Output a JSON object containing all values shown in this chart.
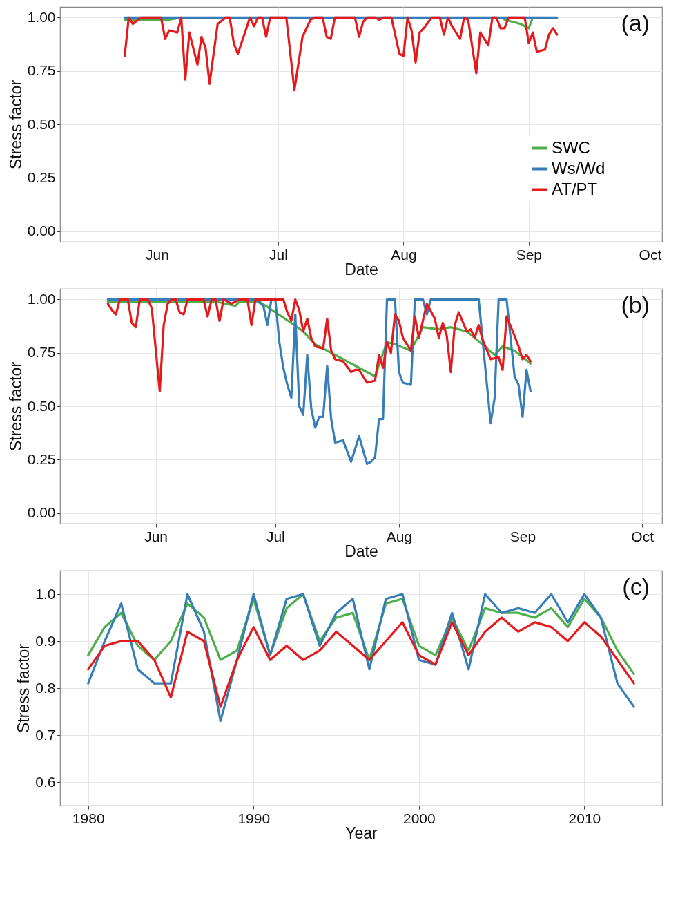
{
  "chart_data": [
    {
      "type": "line",
      "xlabel": "Date",
      "ylabel": "Stress factor",
      "annotations": [
        "(a)"
      ],
      "grid": true,
      "legend": "right",
      "xlim": [
        "--05-08",
        "--10-04"
      ],
      "xticks": [
        {
          "value": "--06-01",
          "label": "Jun"
        },
        {
          "value": "--07-01",
          "label": "Jul"
        },
        {
          "value": "--08-01",
          "label": "Aug"
        },
        {
          "value": "--09-01",
          "label": "Sep"
        },
        {
          "value": "--10-01",
          "label": "Oct"
        }
      ],
      "ylim": [
        -0.05,
        1.05
      ],
      "yticks": [
        {
          "value": 0,
          "label": "0.00"
        },
        0.25,
        {
          "value": 0.5,
          "label": "0.50"
        },
        0.75,
        {
          "value": 1,
          "label": "1.00"
        }
      ],
      "series": [
        {
          "name": "SWC",
          "color": "#4daf4a",
          "x": [
            "--05-24",
            "--06-04",
            "--06-07",
            "--08-22",
            "--08-26",
            "--08-30",
            "--09-01",
            "--09-02"
          ],
          "values": [
            0.99,
            0.99,
            1.0,
            null,
            0.99,
            0.97,
            0.95,
            1.0
          ]
        },
        {
          "name": "Ws/Wd",
          "color": "#377eb8",
          "x": [
            "--05-24",
            "--09-08"
          ],
          "values": [
            1.0,
            1.0
          ]
        },
        {
          "name": "AT/PT",
          "color": "#e41a1c",
          "x": [
            "--05-24",
            "--05-25",
            "--05-26",
            "--05-28",
            "--06-02",
            "--06-03",
            "--06-04",
            "--06-06",
            "--06-07",
            "--06-08",
            "--06-09",
            "--06-11",
            "--06-12",
            "--06-13",
            "--06-14",
            "--06-16",
            "--06-18",
            "--06-19",
            "--06-20",
            "--06-21",
            "--06-24",
            "--06-25",
            "--06-26",
            "--06-27",
            "--06-28",
            "--06-29",
            "--07-03",
            "--07-05",
            "--07-07",
            "--07-09",
            "--07-10",
            "--07-12",
            "--07-13",
            "--07-14",
            "--07-15",
            "--07-20",
            "--07-21",
            "--07-22",
            "--07-23",
            "--07-25",
            "--07-26",
            "--07-27",
            "--07-29",
            "--07-31",
            "--08-01",
            "--08-02",
            "--08-03",
            "--08-04",
            "--08-05",
            "--08-06",
            "--08-08",
            "--08-10",
            "--08-11",
            "--08-12",
            "--08-13",
            "--08-15",
            "--08-16",
            "--08-17",
            "--08-19",
            "--08-20",
            "--08-22",
            "--08-23",
            "--08-24",
            "--08-25",
            "--08-26",
            "--08-27",
            "--08-31",
            "--09-01",
            "--09-02",
            "--09-03",
            "--09-05",
            "--09-06",
            "--09-07",
            "--09-08"
          ],
          "values": [
            0.82,
            1.0,
            0.97,
            1.0,
            1.0,
            0.9,
            0.94,
            0.93,
            1.0,
            0.71,
            0.93,
            0.78,
            0.91,
            0.86,
            0.69,
            0.97,
            1.0,
            1.0,
            0.88,
            0.83,
            1.0,
            0.96,
            1.0,
            1.0,
            0.91,
            1.0,
            1.0,
            0.66,
            0.91,
            0.99,
            1.0,
            1.0,
            0.91,
            0.9,
            1.0,
            1.0,
            0.91,
            0.98,
            1.0,
            1.0,
            0.99,
            1.0,
            1.0,
            0.83,
            0.82,
            1.0,
            0.94,
            0.79,
            0.93,
            0.95,
            1.0,
            1.0,
            0.92,
            1.0,
            0.96,
            0.9,
            1.0,
            0.99,
            0.74,
            0.93,
            0.87,
            1.0,
            1.0,
            0.95,
            0.95,
            1.0,
            1.0,
            0.88,
            0.93,
            0.84,
            0.85,
            0.92,
            0.95,
            0.92
          ]
        }
      ]
    },
    {
      "type": "line",
      "xlabel": "Date",
      "ylabel": "Stress factor",
      "annotations": [
        "(b)"
      ],
      "grid": true,
      "xlim": [
        "--05-08",
        "--10-06"
      ],
      "xticks": [
        {
          "value": "--06-01",
          "label": "Jun"
        },
        {
          "value": "--07-01",
          "label": "Jul"
        },
        {
          "value": "--08-01",
          "label": "Aug"
        },
        {
          "value": "--09-01",
          "label": "Sep"
        },
        {
          "value": "--10-01",
          "label": "Oct"
        }
      ],
      "ylim": [
        -0.05,
        1.05
      ],
      "yticks": [
        {
          "value": 0,
          "label": "0.00"
        },
        0.25,
        {
          "value": 0.5,
          "label": "0.50"
        },
        0.75,
        {
          "value": 1,
          "label": "1.00"
        }
      ],
      "series": [
        {
          "color": "#4daf4a",
          "x": [
            "--05-20",
            "--06-16",
            "--06-21",
            "--06-22",
            "--06-27",
            "--07-01",
            "--07-05",
            "--07-08",
            "--07-11",
            "--07-17",
            "--07-26",
            "--07-29",
            "--07-31",
            "--08-04",
            "--08-07",
            "--08-11",
            "--08-14",
            "--08-18",
            "--08-20",
            "--08-25",
            "--08-27",
            "--08-30",
            "--09-03"
          ],
          "values": [
            0.99,
            0.99,
            0.97,
            0.99,
            0.99,
            0.94,
            0.89,
            0.85,
            0.79,
            0.73,
            0.64,
            0.8,
            0.79,
            0.76,
            0.87,
            0.86,
            0.87,
            0.85,
            0.82,
            0.74,
            0.78,
            0.76,
            0.7
          ]
        },
        {
          "color": "#377eb8",
          "x": [
            "--05-20",
            "--06-26",
            "--06-28",
            "--06-29",
            "--06-30",
            "--07-01",
            "--07-02",
            "--07-03",
            "--07-04",
            "--07-05",
            "--07-06",
            "--07-07",
            "--07-08",
            "--07-09",
            "--07-10",
            "--07-11",
            "--07-12",
            "--07-13",
            "--07-14",
            "--07-15",
            "--07-16",
            "--07-18",
            "--07-20",
            "--07-22",
            "--07-24",
            "--07-25",
            "--07-26",
            "--07-27",
            "--07-28",
            "--07-29",
            "--07-31",
            "--08-01",
            "--08-02",
            "--08-04",
            "--08-05",
            "--08-07",
            "--08-08",
            "--08-09",
            "--08-21",
            "--08-24",
            "--08-25",
            "--08-26",
            "--08-28",
            "--08-30",
            "--08-31",
            "--09-01",
            "--09-02",
            "--09-03"
          ],
          "values": [
            1.0,
            1.0,
            0.97,
            0.88,
            1.0,
            1.0,
            0.8,
            0.68,
            0.6,
            0.54,
            0.93,
            0.5,
            0.46,
            0.74,
            0.49,
            0.4,
            0.45,
            0.45,
            0.69,
            0.44,
            0.33,
            0.34,
            0.24,
            0.36,
            0.23,
            0.24,
            0.26,
            0.44,
            0.44,
            1.0,
            1.0,
            0.66,
            0.61,
            0.6,
            1.0,
            1.0,
            0.93,
            1.0,
            1.0,
            0.42,
            0.54,
            1.0,
            1.0,
            0.64,
            0.6,
            0.45,
            0.67,
            0.57
          ]
        },
        {
          "color": "#e41a1c",
          "x": [
            "--05-20",
            "--05-21",
            "--05-22",
            "--05-23",
            "--05-25",
            "--05-26",
            "--05-27",
            "--05-28",
            "--05-30",
            "--05-31",
            "--06-02",
            "--06-03",
            "--06-04",
            "--06-05",
            "--06-06",
            "--06-07",
            "--06-08",
            "--06-09",
            "--06-13",
            "--06-14",
            "--06-15",
            "--06-16",
            "--06-17",
            "--06-18",
            "--06-20",
            "--06-21",
            "--06-22",
            "--06-24",
            "--06-25",
            "--06-26",
            "--06-30",
            "--07-03",
            "--07-04",
            "--07-05",
            "--07-06",
            "--07-07",
            "--07-08",
            "--07-09",
            "--07-10",
            "--07-11",
            "--07-13",
            "--07-14",
            "--07-15",
            "--07-16",
            "--07-18",
            "--07-20",
            "--07-21",
            "--07-22",
            "--07-24",
            "--07-26",
            "--07-27",
            "--07-28",
            "--07-29",
            "--07-30",
            "--07-31",
            "--08-01",
            "--08-02",
            "--08-04",
            "--08-05",
            "--08-06",
            "--08-08",
            "--08-10",
            "--08-11",
            "--08-12",
            "--08-13",
            "--08-14",
            "--08-15",
            "--08-16",
            "--08-18",
            "--08-19",
            "--08-20",
            "--08-21",
            "--08-22",
            "--08-24",
            "--08-26",
            "--08-27",
            "--08-28",
            "--08-30",
            "--08-31",
            "--09-01",
            "--09-02",
            "--09-03"
          ],
          "values": [
            0.98,
            0.95,
            0.93,
            1.0,
            1.0,
            0.89,
            0.87,
            1.0,
            1.0,
            0.96,
            0.57,
            0.88,
            0.98,
            1.0,
            1.0,
            0.94,
            0.93,
            1.0,
            1.0,
            0.92,
            1.0,
            1.0,
            0.9,
            1.0,
            0.98,
            0.99,
            1.0,
            1.0,
            0.88,
            1.0,
            1.0,
            1.0,
            0.94,
            0.9,
            1.0,
            0.95,
            0.85,
            0.91,
            0.82,
            0.78,
            0.77,
            0.91,
            0.76,
            0.72,
            0.71,
            0.66,
            0.67,
            0.67,
            0.61,
            0.62,
            0.74,
            0.68,
            0.8,
            0.75,
            0.93,
            0.9,
            0.82,
            0.76,
            0.92,
            0.82,
            0.98,
            0.91,
            0.82,
            0.89,
            0.83,
            0.66,
            0.88,
            0.94,
            0.85,
            0.86,
            0.82,
            0.88,
            0.81,
            0.72,
            0.73,
            0.67,
            0.92,
            0.83,
            0.78,
            0.72,
            0.74,
            0.71
          ]
        }
      ]
    },
    {
      "type": "line",
      "xlabel": "Year",
      "ylabel": "Stress factor",
      "annotations": [
        "(c)"
      ],
      "grid": true,
      "x": [
        1980,
        1981,
        1982,
        1983,
        1984,
        1985,
        1986,
        1987,
        1988,
        1989,
        1990,
        1991,
        1992,
        1993,
        1994,
        1995,
        1996,
        1997,
        1998,
        1999,
        2000,
        2001,
        2002,
        2003,
        2004,
        2005,
        2006,
        2007,
        2008,
        2009,
        2010,
        2011,
        2012,
        2013
      ],
      "xlim": [
        1978.3,
        2014.7
      ],
      "xticks": [
        1980,
        1990,
        2000,
        2010
      ],
      "ylim": [
        0.55,
        1.05
      ],
      "yticks": [
        0.6,
        0.7,
        0.8,
        0.9,
        {
          "value": 1,
          "label": "1.0"
        }
      ],
      "series": [
        {
          "color": "#4daf4a",
          "values": [
            0.87,
            0.93,
            0.96,
            0.89,
            0.86,
            0.9,
            0.98,
            0.95,
            0.86,
            0.88,
            0.99,
            0.87,
            0.97,
            1.0,
            0.9,
            0.95,
            0.96,
            0.86,
            0.98,
            0.99,
            0.89,
            0.87,
            0.95,
            0.88,
            0.97,
            0.96,
            0.96,
            0.95,
            0.97,
            0.93,
            0.99,
            0.95,
            0.88,
            0.83
          ]
        },
        {
          "color": "#377eb8",
          "values": [
            0.81,
            0.9,
            0.98,
            0.84,
            0.81,
            0.81,
            1.0,
            0.92,
            0.73,
            0.86,
            1.0,
            0.87,
            0.99,
            1.0,
            0.89,
            0.96,
            0.99,
            0.84,
            0.99,
            1.0,
            0.86,
            0.85,
            0.96,
            0.84,
            1.0,
            0.96,
            0.97,
            0.96,
            1.0,
            0.94,
            1.0,
            0.95,
            0.81,
            0.76
          ]
        },
        {
          "color": "#e41a1c",
          "values": [
            0.84,
            0.89,
            0.9,
            0.9,
            0.86,
            0.78,
            0.92,
            0.9,
            0.76,
            0.86,
            0.93,
            0.86,
            0.89,
            0.86,
            0.88,
            0.92,
            0.89,
            0.86,
            0.9,
            0.94,
            0.87,
            0.85,
            0.94,
            0.87,
            0.92,
            0.95,
            0.92,
            0.94,
            0.93,
            0.9,
            0.94,
            0.91,
            0.86,
            0.81
          ]
        }
      ]
    }
  ]
}
